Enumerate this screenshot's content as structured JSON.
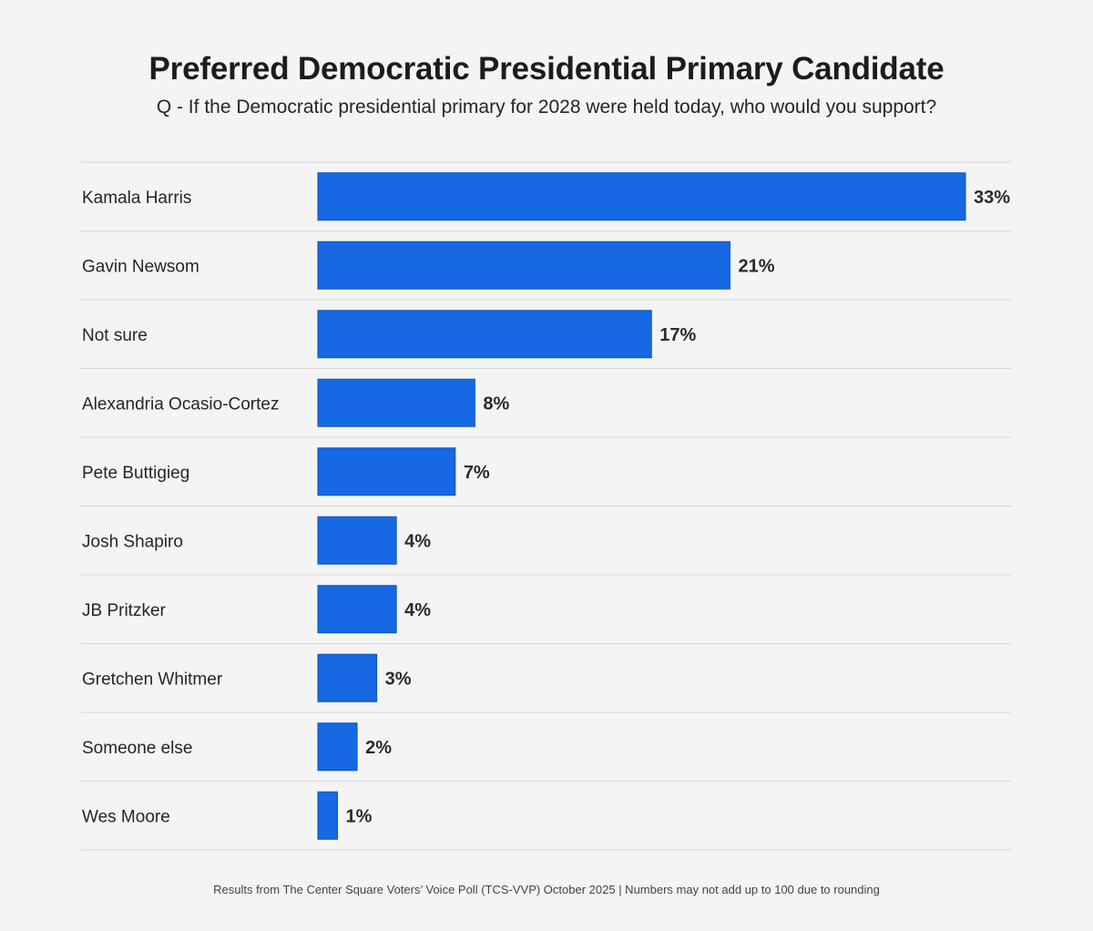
{
  "chart_data": {
    "type": "bar",
    "orientation": "horizontal",
    "title": "Preferred Democratic Presidential Primary Candidate",
    "subtitle": "Q - If the Democratic presidential primary for 2028 were held today, who would you support?",
    "categories": [
      "Kamala Harris",
      "Gavin Newsom",
      "Not sure",
      "Alexandria Ocasio-Cortez",
      "Pete Buttigieg",
      "Josh Shapiro",
      "JB Pritzker",
      "Gretchen Whitmer",
      "Someone else",
      "Wes Moore"
    ],
    "values": [
      33,
      21,
      17,
      8,
      7,
      4,
      4,
      3,
      2,
      1
    ],
    "value_labels": [
      "33%",
      "21%",
      "17%",
      "8%",
      "7%",
      "4%",
      "4%",
      "3%",
      "2%",
      "1%"
    ],
    "unit": "%",
    "bar_color": "#1668e3",
    "grid": false,
    "legend": "none"
  },
  "footer": "Results from The Center Square Voters’ Voice Poll (TCS-VVP) October 2025 | Numbers may not add up to 100 due to rounding"
}
